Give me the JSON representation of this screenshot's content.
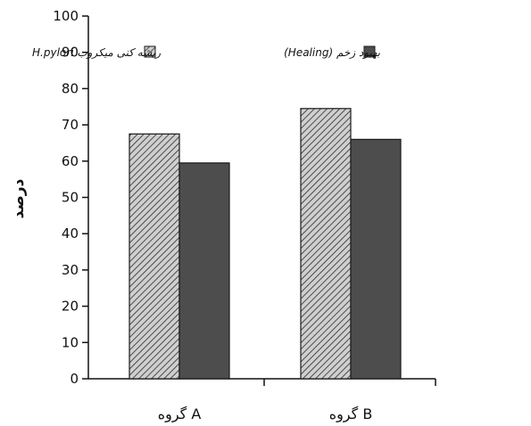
{
  "chart_data": {
    "type": "bar",
    "categories": [
      "گروه A",
      "گروه B"
    ],
    "series": [
      {
        "name": "H.pylori ریشه کنی میکروب",
        "values": [
          67.5,
          74.5
        ],
        "pattern": "hatched"
      },
      {
        "name": "(Healing) بهبود زخم",
        "values": [
          59.5,
          66
        ],
        "pattern": "solid"
      }
    ],
    "ylabel": "درصد",
    "xlabel": "",
    "ylim": [
      0,
      100
    ],
    "yticks": [
      0,
      10,
      20,
      30,
      40,
      50,
      60,
      70,
      80,
      90,
      100
    ],
    "grid": false,
    "legend_position": "top-right",
    "colors": {
      "axis": "#111111",
      "hatch_fill": "#cfcfcf",
      "hatch_line": "#2a2a2a",
      "solid_fill": "#4d4d4d",
      "bar_edge": "#1a1a1a"
    }
  }
}
